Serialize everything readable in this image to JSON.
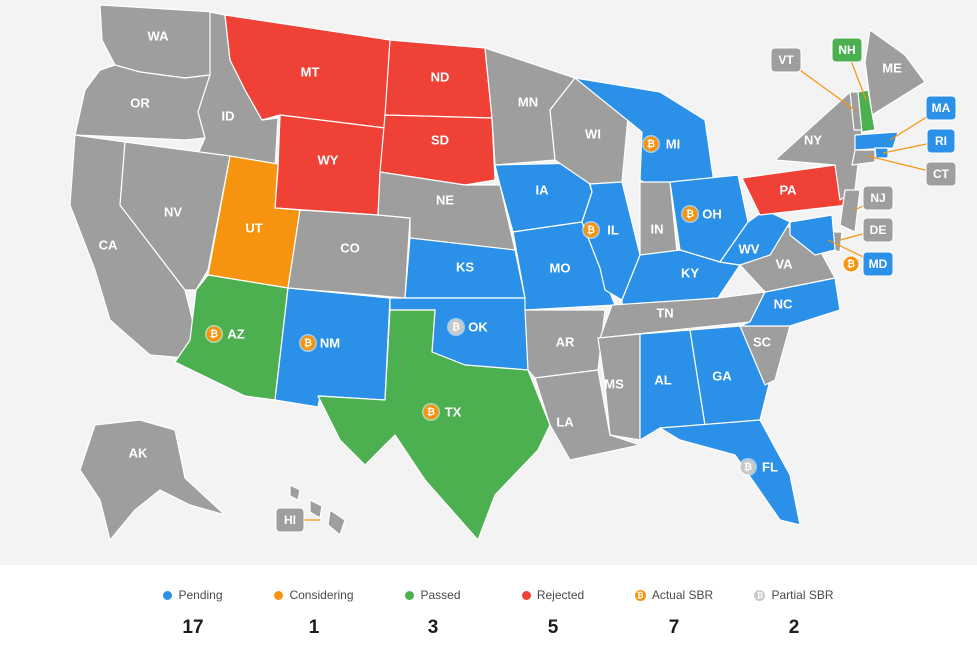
{
  "colors": {
    "pending": "#2b90e8",
    "considering": "#f7940f",
    "passed": "#4caf50",
    "rejected": "#ef4136",
    "none": "#9e9e9e",
    "actual_sbr": "#f7940f",
    "partial_sbr": "#c8c8c8"
  },
  "states": {
    "WA": {
      "label": "WA",
      "status": "none"
    },
    "OR": {
      "label": "OR",
      "status": "none"
    },
    "CA": {
      "label": "CA",
      "status": "none"
    },
    "ID": {
      "label": "ID",
      "status": "none"
    },
    "NV": {
      "label": "NV",
      "status": "none"
    },
    "MT": {
      "label": "MT",
      "status": "rejected"
    },
    "WY": {
      "label": "WY",
      "status": "rejected"
    },
    "UT": {
      "label": "UT",
      "status": "considering"
    },
    "AZ": {
      "label": "AZ",
      "status": "passed",
      "sbr": "actual"
    },
    "CO": {
      "label": "CO",
      "status": "none"
    },
    "NM": {
      "label": "NM",
      "status": "pending",
      "sbr": "actual"
    },
    "ND": {
      "label": "ND",
      "status": "rejected"
    },
    "SD": {
      "label": "SD",
      "status": "rejected"
    },
    "NE": {
      "label": "NE",
      "status": "none"
    },
    "KS": {
      "label": "KS",
      "status": "pending"
    },
    "OK": {
      "label": "OK",
      "status": "pending",
      "sbr": "partial"
    },
    "TX": {
      "label": "TX",
      "status": "passed",
      "sbr": "actual"
    },
    "MN": {
      "label": "MN",
      "status": "none"
    },
    "IA": {
      "label": "IA",
      "status": "pending"
    },
    "MO": {
      "label": "MO",
      "status": "pending"
    },
    "AR": {
      "label": "AR",
      "status": "none"
    },
    "LA": {
      "label": "LA",
      "status": "none"
    },
    "WI": {
      "label": "WI",
      "status": "none"
    },
    "IL": {
      "label": "IL",
      "status": "pending",
      "sbr": "actual"
    },
    "MI": {
      "label": "MI",
      "status": "pending",
      "sbr": "actual"
    },
    "IN": {
      "label": "IN",
      "status": "none"
    },
    "OH": {
      "label": "OH",
      "status": "pending",
      "sbr": "actual"
    },
    "KY": {
      "label": "KY",
      "status": "pending"
    },
    "TN": {
      "label": "TN",
      "status": "none"
    },
    "MS": {
      "label": "MS",
      "status": "none"
    },
    "AL": {
      "label": "AL",
      "status": "pending"
    },
    "GA": {
      "label": "GA",
      "status": "pending"
    },
    "FL": {
      "label": "FL",
      "status": "pending",
      "sbr": "partial"
    },
    "SC": {
      "label": "SC",
      "status": "none"
    },
    "NC": {
      "label": "NC",
      "status": "pending"
    },
    "VA": {
      "label": "VA",
      "status": "none"
    },
    "WV": {
      "label": "WV",
      "status": "pending"
    },
    "PA": {
      "label": "PA",
      "status": "rejected"
    },
    "NY": {
      "label": "NY",
      "status": "none"
    },
    "ME": {
      "label": "ME",
      "status": "none"
    },
    "AK": {
      "label": "AK",
      "status": "none"
    },
    "HI": {
      "label": "HI",
      "status": "none"
    },
    "VT": {
      "label": "VT",
      "status": "none"
    },
    "NH": {
      "label": "NH",
      "status": "passed"
    },
    "MA": {
      "label": "MA",
      "status": "pending"
    },
    "RI": {
      "label": "RI",
      "status": "pending"
    },
    "CT": {
      "label": "CT",
      "status": "none"
    },
    "NJ": {
      "label": "NJ",
      "status": "none"
    },
    "DE": {
      "label": "DE",
      "status": "none"
    },
    "MD": {
      "label": "MD",
      "status": "pending",
      "sbr": "actual"
    }
  },
  "legend": [
    {
      "key": "pending",
      "label": "Pending",
      "count": "17"
    },
    {
      "key": "considering",
      "label": "Considering",
      "count": "1"
    },
    {
      "key": "passed",
      "label": "Passed",
      "count": "3"
    },
    {
      "key": "rejected",
      "label": "Rejected",
      "count": "5"
    },
    {
      "key": "actual_sbr",
      "label": "Actual SBR",
      "count": "7"
    },
    {
      "key": "partial_sbr",
      "label": "Partial SBR",
      "count": "2"
    }
  ]
}
